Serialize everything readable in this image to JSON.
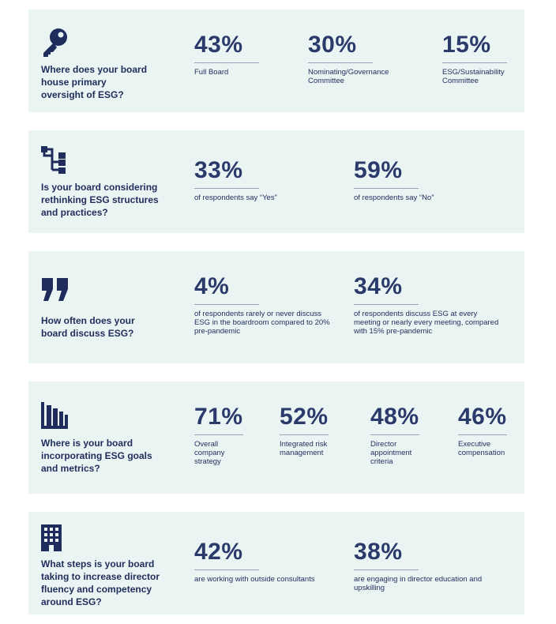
{
  "colors": {
    "panel_bg": "#eaf4f3",
    "navy": "#1f2d5c",
    "accent": "#2a3a6b"
  },
  "sections": [
    {
      "icon": "key-icon",
      "question": "Where does your board house primary oversight of ESG?",
      "stats": [
        {
          "value": "43%",
          "label": "Full Board"
        },
        {
          "value": "30%",
          "label": "Nominating/Governance Committee"
        },
        {
          "value": "15%",
          "label": "ESG/Sustainability Committee"
        }
      ]
    },
    {
      "icon": "org-structure-icon",
      "question": "Is your board considering rethinking ESG structures and practices?",
      "stats": [
        {
          "value": "33%",
          "label": "of respondents say “Yes”"
        },
        {
          "value": "59%",
          "label": "of respondents say “No”"
        }
      ]
    },
    {
      "icon": "quote-icon",
      "question": "How often does your board discuss ESG?",
      "stats": [
        {
          "value": "4%",
          "label": "of respondents rarely or never discuss ESG in the boardroom compared to 20% pre-pandemic"
        },
        {
          "value": "34%",
          "label": "of respondents discuss ESG at every meeting or nearly every meeting, compared with 15% pre-pandemic"
        }
      ]
    },
    {
      "icon": "bar-chart-icon",
      "question": "Where is your board incorporating ESG goals and metrics?",
      "stats": [
        {
          "value": "71%",
          "label": "Overall company strategy"
        },
        {
          "value": "52%",
          "label": "Integrated risk management"
        },
        {
          "value": "48%",
          "label": "Director appointment criteria"
        },
        {
          "value": "46%",
          "label": "Executive compensation"
        }
      ]
    },
    {
      "icon": "building-icon",
      "question": "What steps is your board taking to increase director fluency and competency around ESG?",
      "stats": [
        {
          "value": "42%",
          "label": "are working with outside consultants"
        },
        {
          "value": "38%",
          "label": "are engaging in director education and upskilling"
        }
      ]
    }
  ]
}
